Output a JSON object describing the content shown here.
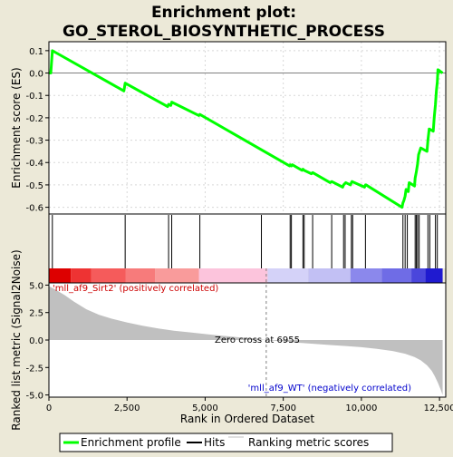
{
  "title_line1": "Enrichment plot:",
  "title_line2": "GO_STEROL_BIOSYNTHETIC_PROCESS",
  "colors": {
    "background": "#ece9d8",
    "enrichment_line": "#00ff00",
    "hits": "#000000",
    "ranking_fill": "#c0c0c0",
    "positive_label": "#cc0000",
    "negative_label": "#0000cc",
    "zero_line": "#808080",
    "plot_background": "#ffffff"
  },
  "legend": {
    "enrichment_profile": "Enrichment profile",
    "hits": "Hits",
    "ranking_metric_scores": "Ranking metric scores"
  },
  "chart_data": {
    "type": "line",
    "total_genes": 12700,
    "enrichment_panel": {
      "ylabel": "Enrichment score (ES)",
      "ylim": [
        -0.63,
        0.14
      ],
      "yticks": [
        0.1,
        0.0,
        -0.1,
        -0.2,
        -0.3,
        -0.4,
        -0.5,
        -0.6
      ],
      "ytick_labels": [
        "0.1",
        "0.0",
        "-0.1",
        "-0.2",
        "-0.3",
        "-0.4",
        "-0.5",
        "-0.6"
      ],
      "series": [
        {
          "x": [
            0,
            60,
            110,
            2400,
            2440,
            3800,
            3830,
            3900,
            3930,
            4800,
            4830,
            7700,
            7720,
            7760,
            7790,
            8100,
            8130,
            8170,
            8400,
            8440,
            9000,
            9050,
            9400,
            9430,
            9500,
            9650,
            9680,
            9700,
            10100,
            10130,
            10150,
            11300,
            11330,
            11360,
            11400,
            11430,
            11500,
            11530,
            11700,
            11720,
            11760,
            11800,
            11830,
            11900,
            12100,
            12130,
            12170,
            12300,
            12330,
            12370,
            12400,
            12430,
            12450,
            12600
          ],
          "y": [
            0.0,
            0.0,
            0.1,
            -0.08,
            -0.045,
            -0.15,
            -0.14,
            -0.145,
            -0.13,
            -0.19,
            -0.185,
            -0.415,
            -0.41,
            -0.415,
            -0.41,
            -0.435,
            -0.43,
            -0.435,
            -0.45,
            -0.445,
            -0.49,
            -0.485,
            -0.51,
            -0.5,
            -0.49,
            -0.5,
            -0.49,
            -0.485,
            -0.51,
            -0.5,
            -0.5,
            -0.6,
            -0.58,
            -0.57,
            -0.55,
            -0.52,
            -0.53,
            -0.49,
            -0.505,
            -0.47,
            -0.44,
            -0.405,
            -0.365,
            -0.335,
            -0.35,
            -0.3,
            -0.25,
            -0.26,
            -0.2,
            -0.14,
            -0.08,
            -0.04,
            0.015,
            0.0
          ]
        }
      ]
    },
    "hits_panel": {
      "hit_positions": [
        110,
        2440,
        3830,
        3930,
        4830,
        6800,
        7720,
        7760,
        8130,
        8170,
        8440,
        9050,
        9430,
        9480,
        9680,
        9720,
        10130,
        11330,
        11400,
        11470,
        11720,
        11760,
        11800,
        11850,
        12130,
        12190,
        12370,
        12430
      ]
    },
    "ranking_panel": {
      "ylabel": "Ranked list metric (Signal2Noise)",
      "xlabel": "Rank in Ordered Dataset",
      "ylim": [
        -5.2,
        5.2
      ],
      "yticks": [
        5.0,
        2.5,
        0.0,
        -2.5,
        -5.0
      ],
      "ytick_labels": [
        "5.0",
        "2.5",
        "0.0",
        "-2.5",
        "-5.0"
      ],
      "xticks": [
        0,
        2500,
        5000,
        7500,
        10000,
        12500
      ],
      "xtick_labels": [
        "0",
        "2,500",
        "5,000",
        "7,500",
        "10,000",
        "12,500"
      ],
      "zero_cross": 6955,
      "zero_cross_label": "Zero cross at 6955",
      "positive_label": "'mll_af9_Sirt2' (positively correlated)",
      "negative_label": "'mll_af9_WT' (negatively correlated)",
      "metric_x": [
        0,
        200,
        500,
        800,
        1200,
        1600,
        2000,
        2500,
        3000,
        3500,
        4000,
        4500,
        5000,
        5500,
        6000,
        6500,
        6955,
        7500,
        8000,
        8500,
        9000,
        9500,
        10000,
        10500,
        11000,
        11400,
        11700,
        11900,
        12100,
        12250,
        12350,
        12450,
        12550,
        12600
      ],
      "metric_y": [
        4.9,
        4.6,
        4.1,
        3.5,
        2.8,
        2.3,
        1.95,
        1.6,
        1.3,
        1.05,
        0.85,
        0.7,
        0.55,
        0.4,
        0.27,
        0.14,
        0.0,
        -0.12,
        -0.25,
        -0.35,
        -0.45,
        -0.55,
        -0.65,
        -0.8,
        -1.0,
        -1.25,
        -1.55,
        -1.85,
        -2.3,
        -2.8,
        -3.3,
        -3.9,
        -4.6,
        -5.0
      ]
    },
    "color_band": [
      {
        "x0": 0,
        "x1": 700,
        "color": "#dd0000"
      },
      {
        "x0": 700,
        "x1": 1350,
        "color": "#ee3333"
      },
      {
        "x0": 1350,
        "x1": 2450,
        "color": "#f55b5b"
      },
      {
        "x0": 2450,
        "x1": 3400,
        "color": "#f77b7b"
      },
      {
        "x0": 3400,
        "x1": 4800,
        "color": "#f99b9b"
      },
      {
        "x0": 4800,
        "x1": 7000,
        "color": "#fcc4dc"
      },
      {
        "x0": 7000,
        "x1": 8300,
        "color": "#d4d2f8"
      },
      {
        "x0": 8300,
        "x1": 9650,
        "color": "#c2c0f4"
      },
      {
        "x0": 9650,
        "x1": 10650,
        "color": "#8b88ec"
      },
      {
        "x0": 10650,
        "x1": 11600,
        "color": "#6f6ce6"
      },
      {
        "x0": 11600,
        "x1": 12050,
        "color": "#4a46dc"
      },
      {
        "x0": 12050,
        "x1": 12600,
        "color": "#1f1ad0"
      }
    ]
  }
}
